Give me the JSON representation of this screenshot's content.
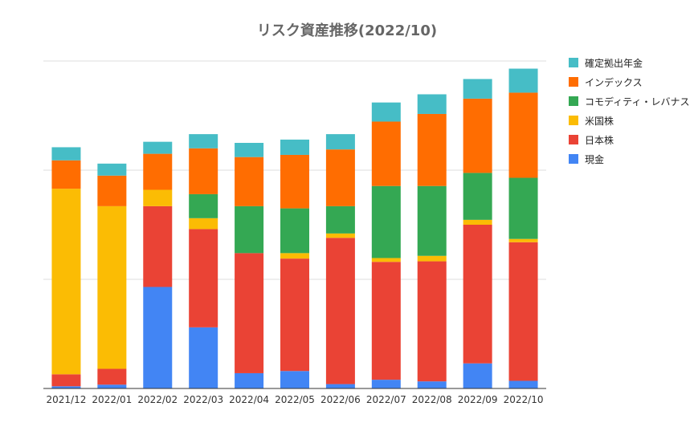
{
  "title": "リスク資産推移(2022/10)",
  "chart_data": {
    "type": "bar",
    "stacked": true,
    "title": "リスク資産推移(2022/10)",
    "categories": [
      "2021/12",
      "2022/01",
      "2022/02",
      "2022/03",
      "2022/04",
      "2022/05",
      "2022/06",
      "2022/07",
      "2022/08",
      "2022/09",
      "2022/10"
    ],
    "ylim": [
      0,
      3000
    ],
    "yaxis_labels_shown": false,
    "grid": true,
    "legend_position": "right",
    "series": [
      {
        "name": "現金",
        "color": "#4285f4",
        "values": [
          20,
          35,
          930,
          560,
          140,
          160,
          40,
          80,
          65,
          230,
          70
        ]
      },
      {
        "name": "日本株",
        "color": "#ea4335",
        "values": [
          110,
          145,
          740,
          900,
          1100,
          1030,
          1340,
          1080,
          1100,
          1270,
          1270
        ]
      },
      {
        "name": "米国株",
        "color": "#fbbc04",
        "values": [
          1700,
          1490,
          150,
          100,
          0,
          50,
          40,
          35,
          50,
          45,
          30
        ]
      },
      {
        "name": "コモディティ・レバナス",
        "color": "#34a853",
        "values": [
          0,
          0,
          0,
          220,
          430,
          410,
          250,
          660,
          640,
          430,
          560
        ]
      },
      {
        "name": "インデックス",
        "color": "#ff6d01",
        "values": [
          260,
          280,
          330,
          420,
          450,
          490,
          520,
          590,
          660,
          680,
          780
        ]
      },
      {
        "name": "確定拠出年金",
        "color": "#46bdc6",
        "values": [
          120,
          110,
          110,
          130,
          130,
          140,
          140,
          175,
          180,
          180,
          220
        ]
      }
    ]
  }
}
